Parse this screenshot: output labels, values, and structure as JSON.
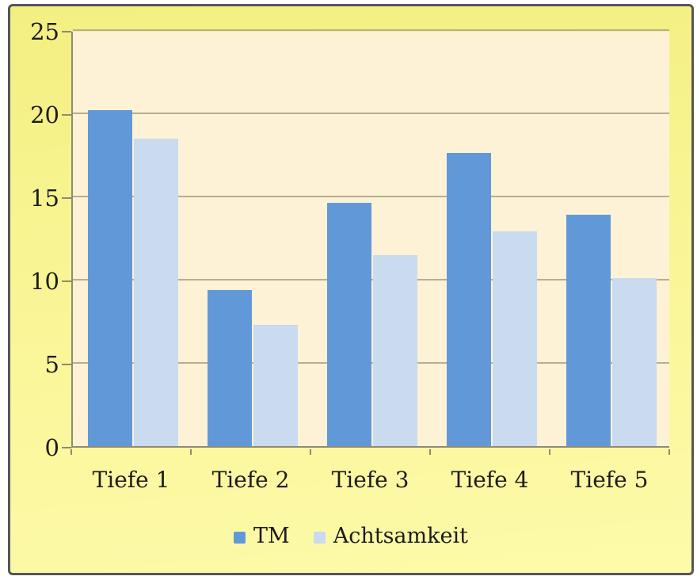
{
  "chart_data": {
    "type": "bar",
    "categories": [
      "Tiefe 1",
      "Tiefe 2",
      "Tiefe 3",
      "Tiefe 4",
      "Tiefe 5"
    ],
    "series": [
      {
        "name": "TM",
        "color": "#6199d8",
        "values": [
          20.2,
          9.4,
          14.6,
          17.6,
          13.9
        ]
      },
      {
        "name": "Achtsamkeit",
        "color": "#cadaef",
        "values": [
          18.5,
          7.3,
          11.5,
          12.9,
          10.1
        ]
      }
    ],
    "title": "",
    "xlabel": "",
    "ylabel": "",
    "ylim": [
      0,
      25
    ],
    "ytick_step": 5,
    "yticks": [
      "0",
      "5",
      "10",
      "15",
      "20",
      "25"
    ],
    "grid": true,
    "legend_position": "bottom"
  },
  "colors": {
    "frame_border": "#55565a",
    "background_top": "#f3ef81",
    "background_bottom": "#fdfaaa",
    "plot_background": "#fdf2d6",
    "gridline": "#b6ae93",
    "axis": "#8e8b74",
    "text": "#1d1c1a"
  }
}
